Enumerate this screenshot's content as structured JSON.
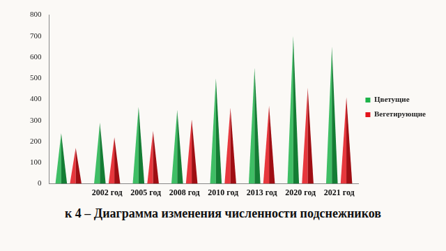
{
  "chart_data": {
    "type": "bar",
    "title": "к 4 – Диаграмма изменения численности подснежников",
    "categories": [
      null,
      "2002 год",
      "2005 год",
      "2008 год",
      "2010 год",
      "2013 год",
      "2020 год",
      "2021 год"
    ],
    "series": [
      {
        "name": "Цветущие",
        "color": "#1db34a",
        "values": [
          240,
          290,
          365,
          350,
          500,
          550,
          700,
          650
        ]
      },
      {
        "name": "Вегетирующие",
        "color": "#e3141b",
        "values": [
          170,
          220,
          250,
          305,
          360,
          370,
          455,
          410
        ]
      }
    ],
    "ylim": [
      0,
      800
    ],
    "yticks": [
      0,
      100,
      200,
      300,
      400,
      500,
      600,
      700,
      800
    ],
    "grid": false,
    "legend": "right"
  }
}
